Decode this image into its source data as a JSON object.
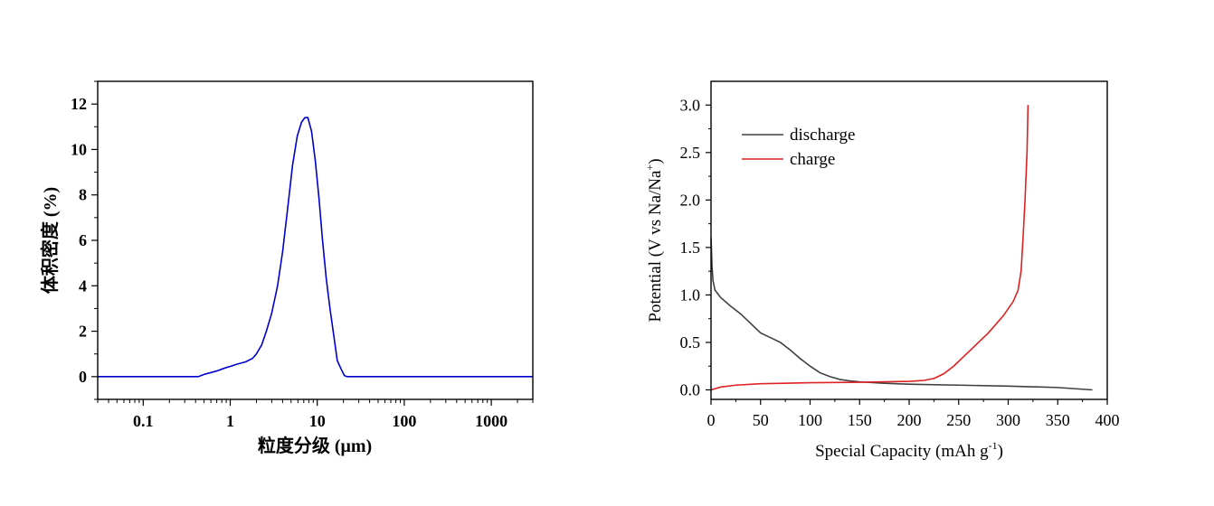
{
  "chart_data": [
    {
      "type": "line",
      "title": "",
      "xlabel": "粒度分级 (μm)",
      "ylabel": "体积密度 (%)",
      "xscale": "log",
      "xlim": [
        0.03,
        3000
      ],
      "ylim": [
        -1,
        13
      ],
      "xticks": [
        0.1,
        1,
        10,
        100,
        1000
      ],
      "xtick_labels": [
        "0.1",
        "1",
        "10",
        "100",
        "1000"
      ],
      "yticks": [
        0,
        2,
        4,
        6,
        8,
        10,
        12
      ],
      "ytick_labels": [
        "0",
        "2",
        "4",
        "6",
        "8",
        "10",
        "12"
      ],
      "grid": false,
      "legend": "none",
      "series": [
        {
          "color": "#0000cc",
          "points": [
            [
              0.03,
              0
            ],
            [
              0.43,
              0
            ],
            [
              0.5,
              0.1
            ],
            [
              0.6,
              0.18
            ],
            [
              0.7,
              0.25
            ],
            [
              0.8,
              0.33
            ],
            [
              0.9,
              0.4
            ],
            [
              1.0,
              0.45
            ],
            [
              1.2,
              0.55
            ],
            [
              1.5,
              0.65
            ],
            [
              1.8,
              0.8
            ],
            [
              2.0,
              1.0
            ],
            [
              2.3,
              1.4
            ],
            [
              2.6,
              2.0
            ],
            [
              3.0,
              2.8
            ],
            [
              3.5,
              4.0
            ],
            [
              4.0,
              5.5
            ],
            [
              4.6,
              7.5
            ],
            [
              5.2,
              9.3
            ],
            [
              5.9,
              10.6
            ],
            [
              6.6,
              11.2
            ],
            [
              7.2,
              11.4
            ],
            [
              7.8,
              11.4
            ],
            [
              8.6,
              10.8
            ],
            [
              9.5,
              9.5
            ],
            [
              10.5,
              7.8
            ],
            [
              11.5,
              6.0
            ],
            [
              12.7,
              4.3
            ],
            [
              14.0,
              3.0
            ],
            [
              15.5,
              1.8
            ],
            [
              17.0,
              0.7
            ],
            [
              19.0,
              0.3
            ],
            [
              20.5,
              0.05
            ],
            [
              22,
              0
            ],
            [
              3000,
              0
            ]
          ]
        }
      ]
    },
    {
      "type": "line",
      "title": "",
      "xlabel": "Special Capacity (mAh g-1)",
      "ylabel": "Potential (V vs Na/Na+)",
      "xlim": [
        0,
        400
      ],
      "ylim": [
        -0.1,
        3.25
      ],
      "xticks": [
        0,
        50,
        100,
        150,
        200,
        250,
        300,
        350,
        400
      ],
      "xtick_labels": [
        "0",
        "50",
        "100",
        "150",
        "200",
        "250",
        "300",
        "350",
        "400"
      ],
      "yticks": [
        0,
        0.5,
        1.0,
        1.5,
        2.0,
        2.5,
        3.0
      ],
      "ytick_labels": [
        "0.0",
        "0.5",
        "1.0",
        "1.5",
        "2.0",
        "2.5",
        "3.0"
      ],
      "grid": false,
      "legend": "top-left",
      "series": [
        {
          "name": "discharge",
          "color": "#404040",
          "points": [
            [
              0,
              1.6
            ],
            [
              1,
              1.3
            ],
            [
              2,
              1.15
            ],
            [
              4,
              1.05
            ],
            [
              10,
              0.97
            ],
            [
              20,
              0.88
            ],
            [
              30,
              0.8
            ],
            [
              40,
              0.7
            ],
            [
              50,
              0.6
            ],
            [
              60,
              0.55
            ],
            [
              70,
              0.5
            ],
            [
              80,
              0.42
            ],
            [
              90,
              0.33
            ],
            [
              100,
              0.25
            ],
            [
              110,
              0.18
            ],
            [
              120,
              0.14
            ],
            [
              130,
              0.11
            ],
            [
              140,
              0.095
            ],
            [
              150,
              0.085
            ],
            [
              175,
              0.07
            ],
            [
              200,
              0.06
            ],
            [
              250,
              0.05
            ],
            [
              300,
              0.04
            ],
            [
              350,
              0.025
            ],
            [
              385,
              0.0
            ]
          ]
        },
        {
          "name": "charge",
          "color": "#dd2222",
          "points": [
            [
              0,
              0.0
            ],
            [
              10,
              0.03
            ],
            [
              25,
              0.05
            ],
            [
              50,
              0.065
            ],
            [
              100,
              0.075
            ],
            [
              150,
              0.08
            ],
            [
              200,
              0.09
            ],
            [
              215,
              0.1
            ],
            [
              225,
              0.12
            ],
            [
              235,
              0.17
            ],
            [
              245,
              0.25
            ],
            [
              255,
              0.35
            ],
            [
              265,
              0.45
            ],
            [
              280,
              0.6
            ],
            [
              295,
              0.78
            ],
            [
              305,
              0.93
            ],
            [
              310,
              1.05
            ],
            [
              313,
              1.25
            ],
            [
              315,
              1.6
            ],
            [
              317,
              2.0
            ],
            [
              319,
              2.5
            ],
            [
              320,
              3.0
            ]
          ]
        }
      ]
    }
  ]
}
